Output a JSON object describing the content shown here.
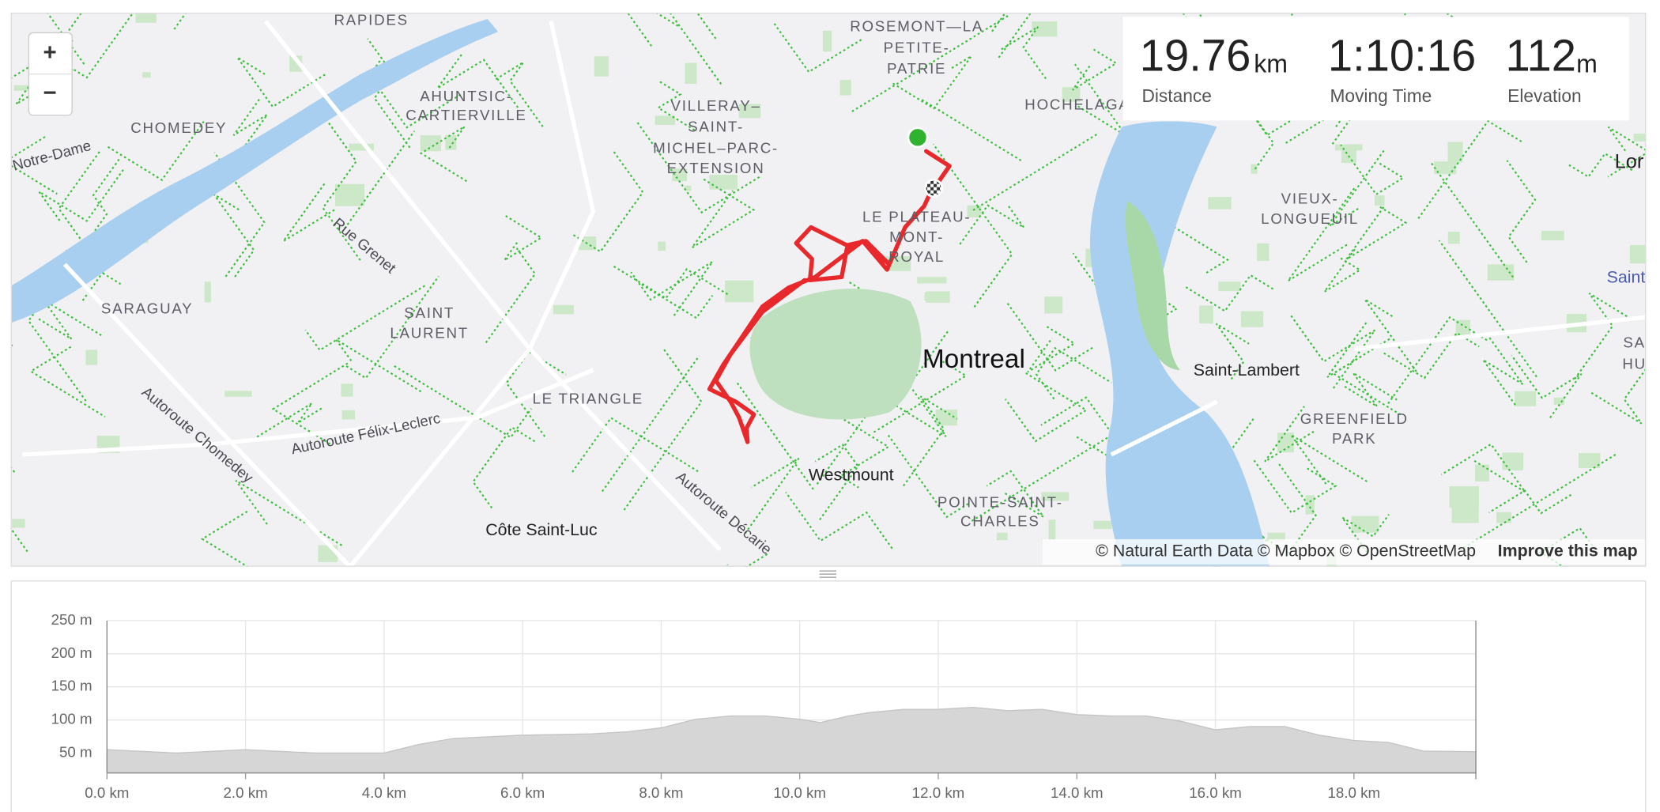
{
  "stats": [
    {
      "value": "19.76",
      "unit": "km",
      "label": "Distance"
    },
    {
      "value": "1:10:16",
      "label": "Moving Time"
    },
    {
      "value": "112",
      "unit": "m",
      "label": "Elevation"
    }
  ],
  "map": {
    "zoom_in": "+",
    "zoom_out": "−",
    "main_city": "Montreal",
    "labels": {
      "rapides": "RAPIDES",
      "rosemont": [
        "ROSEMONT—LA",
        "PETITE-",
        "PATRIE"
      ],
      "ahuntsic": [
        "AHUNTSIC-",
        "CARTIERVILLE"
      ],
      "chomedey": "CHOMEDEY",
      "villeray": [
        "VILLERAY–",
        "SAINT-",
        "MICHEL–PARC-",
        "EXTENSION"
      ],
      "hochelaga": "HOCHELAGA",
      "notre_dame": "Notre-Dame",
      "rue_grenet": "Rue Grenet",
      "plateau": [
        "LE PLATEAU-",
        "MONT-",
        "ROYAL"
      ],
      "vieux_longueuil": [
        "VIEUX-",
        "LONGUEUIL"
      ],
      "lor": "Lor",
      "saint_east": "Saint",
      "saraguay": "SARAGUAY",
      "saint_laurent": [
        "SAINT",
        "LAURENT"
      ],
      "saint_lambert": "Saint-Lambert",
      "sa_hu": [
        "SA",
        "HU"
      ],
      "le_triangle": "LE TRIANGLE",
      "autoroute_chomedey": "Autoroute Chomedey",
      "autoroute_felix": "Autoroute Félix-Leclerc",
      "greenfield": [
        "GREENFIELD",
        "PARK"
      ],
      "westmount": "Westmount",
      "pointe": [
        "POINTE-SAINT-",
        "CHARLES"
      ],
      "autoroute_decarie": "Autoroute Décarie",
      "cote_saint_luc": "Côte Saint-Luc"
    },
    "attribution": "© Natural Earth Data © Mapbox © OpenStreetMap",
    "improve": "Improve this map"
  },
  "chart_data": {
    "type": "area",
    "color": "#d6d6d6",
    "grid": true,
    "x": [
      0,
      1,
      2,
      3,
      4,
      4.5,
      5,
      6,
      7,
      7.5,
      8,
      8.5,
      9,
      9.5,
      10,
      10.3,
      10.7,
      11,
      11.5,
      12,
      12.5,
      13,
      13.5,
      14,
      14.5,
      15,
      15.5,
      16,
      16.5,
      17,
      17.5,
      18,
      18.5,
      19,
      19.76
    ],
    "values": [
      55,
      50,
      55,
      50,
      50,
      63,
      72,
      77,
      79,
      82,
      88,
      101,
      106,
      106,
      101,
      96,
      106,
      111,
      116,
      116,
      119,
      114,
      116,
      108,
      106,
      106,
      98,
      85,
      90,
      90,
      77,
      69,
      66,
      53,
      52
    ],
    "xlim": [
      0,
      19.76
    ],
    "ylim": [
      20,
      250
    ],
    "xticks": [
      {
        "value": 0,
        "label": "0.0 km"
      },
      {
        "value": 2,
        "label": "2.0 km"
      },
      {
        "value": 4,
        "label": "4.0 km"
      },
      {
        "value": 6,
        "label": "6.0 km"
      },
      {
        "value": 8,
        "label": "8.0 km"
      },
      {
        "value": 10,
        "label": "10.0 km"
      },
      {
        "value": 12,
        "label": "12.0 km"
      },
      {
        "value": 14,
        "label": "14.0 km"
      },
      {
        "value": 16,
        "label": "16.0 km"
      },
      {
        "value": 18,
        "label": "18.0 km"
      }
    ],
    "yticks": [
      {
        "value": 50,
        "label": "50 m"
      },
      {
        "value": 100,
        "label": "100 m"
      },
      {
        "value": 150,
        "label": "150 m"
      },
      {
        "value": 200,
        "label": "200 m"
      },
      {
        "value": 250,
        "label": "250 m"
      }
    ]
  }
}
